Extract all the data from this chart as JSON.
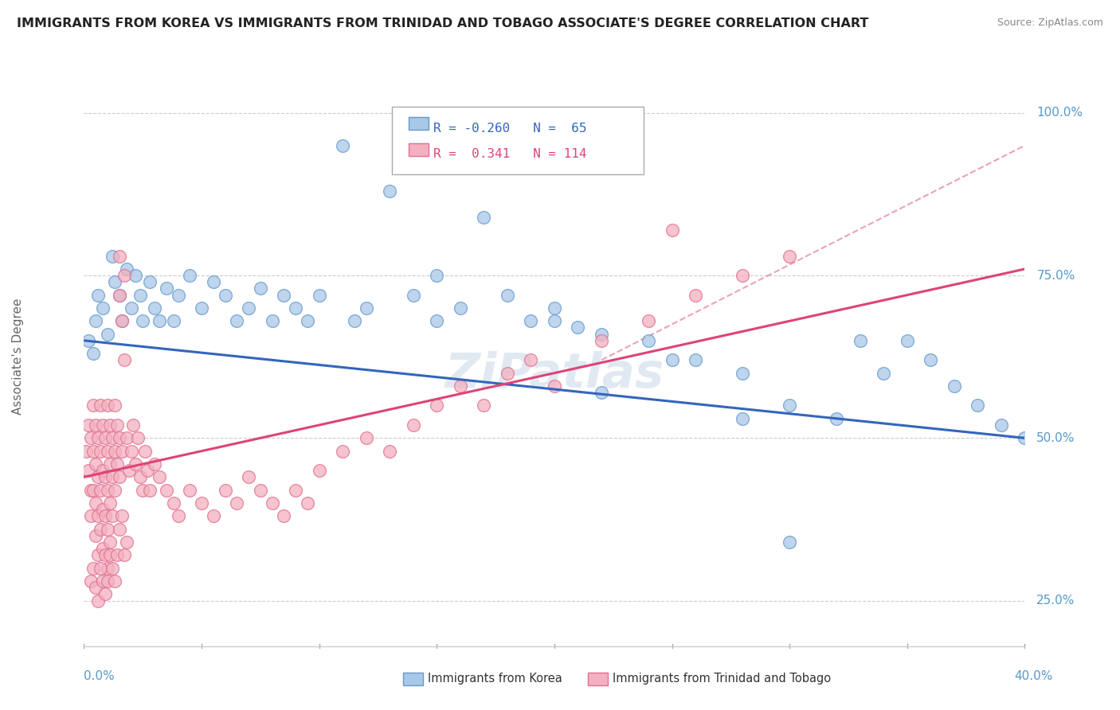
{
  "title": "IMMIGRANTS FROM KOREA VS IMMIGRANTS FROM TRINIDAD AND TOBAGO ASSOCIATE'S DEGREE CORRELATION CHART",
  "source": "Source: ZipAtlas.com",
  "ylabel": "Associate's Degree",
  "color_korea": "#A8C8E8",
  "color_korea_edge": "#6699CC",
  "color_tt": "#F4B0C0",
  "color_tt_edge": "#E07090",
  "color_korea_line": "#3366BB",
  "color_tt_line": "#DD4477",
  "watermark": "ZiPatlas",
  "R_korea": -0.26,
  "N_korea": 65,
  "R_tt": 0.341,
  "N_tt": 114,
  "label_korea": "Immigrants from Korea",
  "label_tt": "Immigrants from Trinidad and Tobago",
  "korea_points": [
    [
      0.2,
      65
    ],
    [
      0.4,
      63
    ],
    [
      0.5,
      68
    ],
    [
      0.6,
      72
    ],
    [
      0.8,
      70
    ],
    [
      1.0,
      66
    ],
    [
      1.2,
      78
    ],
    [
      1.3,
      74
    ],
    [
      1.5,
      72
    ],
    [
      1.6,
      68
    ],
    [
      1.8,
      76
    ],
    [
      2.0,
      70
    ],
    [
      2.2,
      75
    ],
    [
      2.4,
      72
    ],
    [
      2.5,
      68
    ],
    [
      2.8,
      74
    ],
    [
      3.0,
      70
    ],
    [
      3.2,
      68
    ],
    [
      3.5,
      73
    ],
    [
      3.8,
      68
    ],
    [
      4.0,
      72
    ],
    [
      4.5,
      75
    ],
    [
      5.0,
      70
    ],
    [
      5.5,
      74
    ],
    [
      6.0,
      72
    ],
    [
      6.5,
      68
    ],
    [
      7.0,
      70
    ],
    [
      7.5,
      73
    ],
    [
      8.0,
      68
    ],
    [
      8.5,
      72
    ],
    [
      9.0,
      70
    ],
    [
      9.5,
      68
    ],
    [
      10.0,
      72
    ],
    [
      11.0,
      95
    ],
    [
      11.5,
      68
    ],
    [
      12.0,
      70
    ],
    [
      13.0,
      88
    ],
    [
      14.0,
      72
    ],
    [
      15.0,
      68
    ],
    [
      16.0,
      70
    ],
    [
      17.0,
      84
    ],
    [
      18.0,
      72
    ],
    [
      19.0,
      68
    ],
    [
      20.0,
      70
    ],
    [
      21.0,
      67
    ],
    [
      22.0,
      66
    ],
    [
      24.0,
      65
    ],
    [
      26.0,
      62
    ],
    [
      28.0,
      60
    ],
    [
      30.0,
      55
    ],
    [
      32.0,
      53
    ],
    [
      33.0,
      65
    ],
    [
      34.0,
      60
    ],
    [
      35.0,
      65
    ],
    [
      36.0,
      62
    ],
    [
      37.0,
      58
    ],
    [
      38.0,
      55
    ],
    [
      39.0,
      52
    ],
    [
      40.0,
      50
    ],
    [
      15.0,
      75
    ],
    [
      20.0,
      68
    ],
    [
      25.0,
      62
    ],
    [
      22.0,
      57
    ],
    [
      28.0,
      53
    ],
    [
      30.0,
      34
    ]
  ],
  "tt_points": [
    [
      0.1,
      48
    ],
    [
      0.2,
      52
    ],
    [
      0.2,
      45
    ],
    [
      0.3,
      50
    ],
    [
      0.3,
      42
    ],
    [
      0.3,
      38
    ],
    [
      0.4,
      55
    ],
    [
      0.4,
      48
    ],
    [
      0.4,
      42
    ],
    [
      0.5,
      52
    ],
    [
      0.5,
      46
    ],
    [
      0.5,
      40
    ],
    [
      0.5,
      35
    ],
    [
      0.6,
      50
    ],
    [
      0.6,
      44
    ],
    [
      0.6,
      38
    ],
    [
      0.6,
      32
    ],
    [
      0.7,
      55
    ],
    [
      0.7,
      48
    ],
    [
      0.7,
      42
    ],
    [
      0.7,
      36
    ],
    [
      0.8,
      52
    ],
    [
      0.8,
      45
    ],
    [
      0.8,
      39
    ],
    [
      0.8,
      33
    ],
    [
      0.9,
      50
    ],
    [
      0.9,
      44
    ],
    [
      0.9,
      38
    ],
    [
      0.9,
      32
    ],
    [
      1.0,
      55
    ],
    [
      1.0,
      48
    ],
    [
      1.0,
      42
    ],
    [
      1.0,
      36
    ],
    [
      1.0,
      30
    ],
    [
      1.1,
      52
    ],
    [
      1.1,
      46
    ],
    [
      1.1,
      40
    ],
    [
      1.1,
      34
    ],
    [
      1.2,
      50
    ],
    [
      1.2,
      44
    ],
    [
      1.2,
      38
    ],
    [
      1.3,
      55
    ],
    [
      1.3,
      48
    ],
    [
      1.3,
      42
    ],
    [
      1.4,
      52
    ],
    [
      1.4,
      46
    ],
    [
      1.5,
      78
    ],
    [
      1.5,
      72
    ],
    [
      1.5,
      50
    ],
    [
      1.5,
      44
    ],
    [
      1.6,
      68
    ],
    [
      1.6,
      48
    ],
    [
      1.7,
      75
    ],
    [
      1.7,
      62
    ],
    [
      1.8,
      50
    ],
    [
      1.9,
      45
    ],
    [
      2.0,
      48
    ],
    [
      2.1,
      52
    ],
    [
      2.2,
      46
    ],
    [
      2.3,
      50
    ],
    [
      2.4,
      44
    ],
    [
      2.5,
      42
    ],
    [
      2.6,
      48
    ],
    [
      2.7,
      45
    ],
    [
      2.8,
      42
    ],
    [
      3.0,
      46
    ],
    [
      3.2,
      44
    ],
    [
      3.5,
      42
    ],
    [
      3.8,
      40
    ],
    [
      4.0,
      38
    ],
    [
      4.5,
      42
    ],
    [
      5.0,
      40
    ],
    [
      5.5,
      38
    ],
    [
      6.0,
      42
    ],
    [
      6.5,
      40
    ],
    [
      7.0,
      44
    ],
    [
      7.5,
      42
    ],
    [
      8.0,
      40
    ],
    [
      8.5,
      38
    ],
    [
      9.0,
      42
    ],
    [
      9.5,
      40
    ],
    [
      10.0,
      45
    ],
    [
      11.0,
      48
    ],
    [
      12.0,
      50
    ],
    [
      13.0,
      48
    ],
    [
      14.0,
      52
    ],
    [
      15.0,
      55
    ],
    [
      16.0,
      58
    ],
    [
      17.0,
      55
    ],
    [
      18.0,
      60
    ],
    [
      19.0,
      62
    ],
    [
      20.0,
      58
    ],
    [
      22.0,
      65
    ],
    [
      24.0,
      68
    ],
    [
      25.0,
      82
    ],
    [
      26.0,
      72
    ],
    [
      28.0,
      75
    ],
    [
      30.0,
      78
    ],
    [
      0.3,
      28
    ],
    [
      0.4,
      30
    ],
    [
      0.5,
      27
    ],
    [
      0.6,
      25
    ],
    [
      0.7,
      30
    ],
    [
      0.8,
      28
    ],
    [
      0.9,
      26
    ],
    [
      1.0,
      28
    ],
    [
      1.1,
      32
    ],
    [
      1.2,
      30
    ],
    [
      1.3,
      28
    ],
    [
      1.4,
      32
    ],
    [
      1.5,
      36
    ],
    [
      1.6,
      38
    ],
    [
      1.7,
      32
    ],
    [
      1.8,
      34
    ]
  ]
}
